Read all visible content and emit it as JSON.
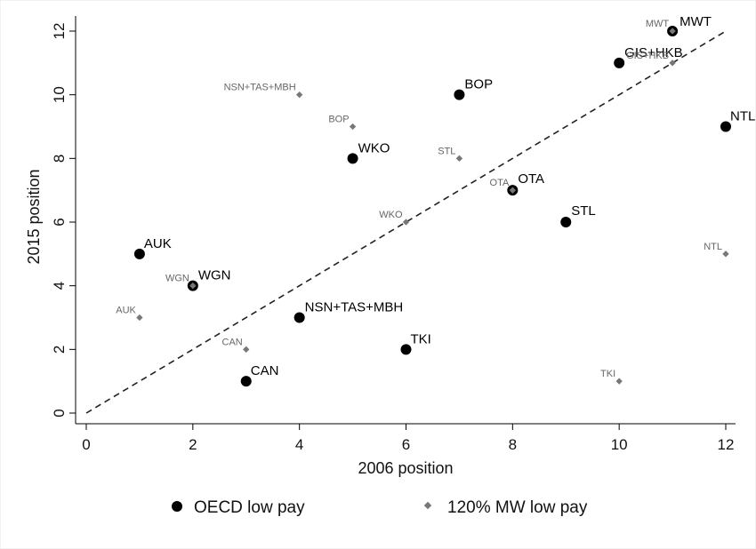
{
  "chart_data": {
    "type": "scatter",
    "xlabel": "2006 position",
    "ylabel": "2015 position",
    "xlim": [
      0,
      12
    ],
    "ylim": [
      0,
      12
    ],
    "xticks": [
      0,
      2,
      4,
      6,
      8,
      10,
      12
    ],
    "yticks": [
      0,
      2,
      4,
      6,
      8,
      10,
      12
    ],
    "grid": false,
    "legend_position": "bottom",
    "reference_line": {
      "style": "dashed",
      "from": [
        0,
        0
      ],
      "to": [
        12,
        12
      ]
    },
    "series": [
      {
        "name": "OECD low pay",
        "marker": "circle",
        "color": "#000000",
        "points": [
          {
            "label": "MWT",
            "x": 11,
            "y": 12
          },
          {
            "label": "GIS+HKB",
            "x": 10,
            "y": 11
          },
          {
            "label": "BOP",
            "x": 7,
            "y": 10
          },
          {
            "label": "NTL",
            "x": 12,
            "y": 9
          },
          {
            "label": "WKO",
            "x": 5,
            "y": 8
          },
          {
            "label": "OTA",
            "x": 8,
            "y": 7
          },
          {
            "label": "STL",
            "x": 9,
            "y": 6
          },
          {
            "label": "AUK",
            "x": 1,
            "y": 5
          },
          {
            "label": "WGN",
            "x": 2,
            "y": 4
          },
          {
            "label": "NSN+TAS+MBH",
            "x": 4,
            "y": 3
          },
          {
            "label": "TKI",
            "x": 6,
            "y": 2
          },
          {
            "label": "CAN",
            "x": 3,
            "y": 1
          }
        ]
      },
      {
        "name": "120% MW low pay",
        "marker": "diamond",
        "color": "#777777",
        "points": [
          {
            "label": "MWT",
            "x": 11,
            "y": 12
          },
          {
            "label": "GIS+HKB",
            "x": 11,
            "y": 11
          },
          {
            "label": "NSN+TAS+MBH",
            "x": 4,
            "y": 10
          },
          {
            "label": "BOP",
            "x": 5,
            "y": 9
          },
          {
            "label": "STL",
            "x": 7,
            "y": 8
          },
          {
            "label": "OTA",
            "x": 8,
            "y": 7
          },
          {
            "label": "WKO",
            "x": 6,
            "y": 6
          },
          {
            "label": "NTL",
            "x": 12,
            "y": 5
          },
          {
            "label": "WGN",
            "x": 2,
            "y": 4
          },
          {
            "label": "AUK",
            "x": 1,
            "y": 3
          },
          {
            "label": "CAN",
            "x": 3,
            "y": 2
          },
          {
            "label": "TKI",
            "x": 10,
            "y": 1
          }
        ]
      }
    ]
  }
}
